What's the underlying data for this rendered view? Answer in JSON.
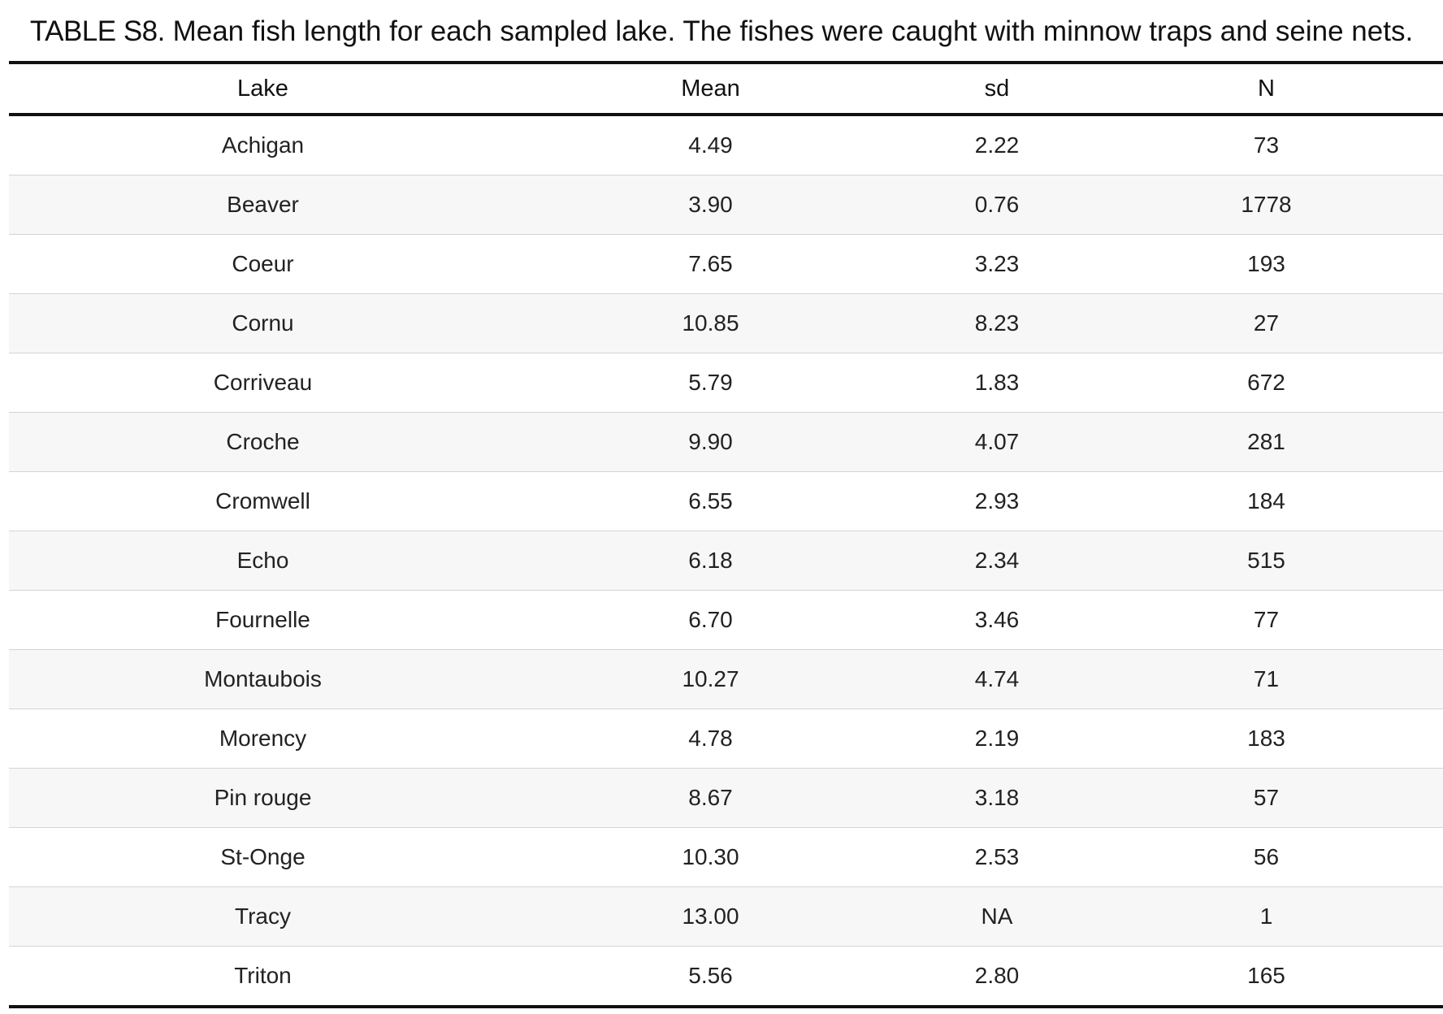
{
  "caption": {
    "label": "TABLE S8.",
    "text": " Mean fish length for each sampled lake. The fishes were caught with minnow traps and seine nets."
  },
  "table": {
    "headers": [
      "Lake",
      "Mean",
      "sd",
      "N"
    ],
    "rows": [
      [
        "Achigan",
        "4.49",
        "2.22",
        "73"
      ],
      [
        "Beaver",
        "3.90",
        "0.76",
        "1778"
      ],
      [
        "Coeur",
        "7.65",
        "3.23",
        "193"
      ],
      [
        "Cornu",
        "10.85",
        "8.23",
        "27"
      ],
      [
        "Corriveau",
        "5.79",
        "1.83",
        "672"
      ],
      [
        "Croche",
        "9.90",
        "4.07",
        "281"
      ],
      [
        "Cromwell",
        "6.55",
        "2.93",
        "184"
      ],
      [
        "Echo",
        "6.18",
        "2.34",
        "515"
      ],
      [
        "Fournelle",
        "6.70",
        "3.46",
        "77"
      ],
      [
        "Montaubois",
        "10.27",
        "4.74",
        "71"
      ],
      [
        "Morency",
        "4.78",
        "2.19",
        "183"
      ],
      [
        "Pin rouge",
        "8.67",
        "3.18",
        "57"
      ],
      [
        "St-Onge",
        "10.30",
        "2.53",
        "56"
      ],
      [
        "Tracy",
        "13.00",
        "NA",
        "1"
      ],
      [
        "Triton",
        "5.56",
        "2.80",
        "165"
      ]
    ]
  }
}
